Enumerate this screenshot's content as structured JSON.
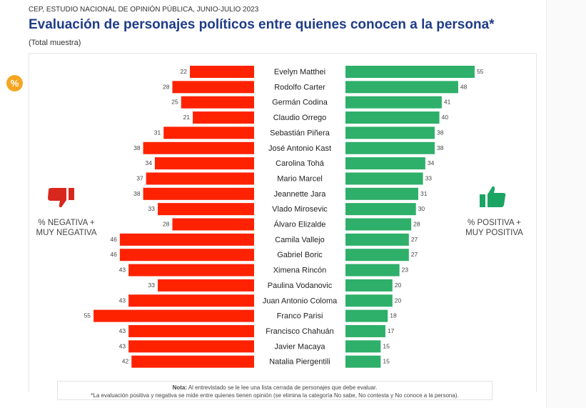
{
  "header": {
    "source": "CEP, ESTUDIO NACIONAL DE OPINIÓN PÚBLICA, JUNIO-JULIO 2023",
    "title": "Evaluación de personajes políticos entre quienes conocen a la persona*",
    "subtitle": "(Total muestra)",
    "badge": "%"
  },
  "labels": {
    "negative": "% NEGATIVA + MUY NEGATIVA",
    "positive": "% POSITIVA + MUY POSITIVA"
  },
  "colors": {
    "negative": "#fe2200",
    "positive": "#2eaf6a",
    "thumb_down": "#d8281e",
    "thumb_up": "#1aa563"
  },
  "note": {
    "bold": "Nota:",
    "line1": " Al entrevistado se le lee una lista cerrada de personajes que debe evaluar.",
    "line2": "*La evaluación positiva y negativa se mide entre quienes tienen opinión (se elimina la categoría No sabe, No contesta y No conoce a la persona)."
  },
  "chart_data": {
    "type": "bar",
    "orientation": "horizontal-diverging",
    "categories": [
      "Evelyn Matthei",
      "Rodolfo Carter",
      "Germán Codina",
      "Claudio Orrego",
      "Sebastián Piñera",
      "José Antonio Kast",
      "Carolina Tohá",
      "Mario Marcel",
      "Jeannette Jara",
      "Vlado Mirosevic",
      "Álvaro Elizalde",
      "Camila Vallejo",
      "Gabriel Boric",
      "Ximena Rincón",
      "Paulina Vodanovic",
      "Juan Antonio Coloma",
      "Franco Parisi",
      "Francisco Chahuán",
      "Javier Macaya",
      "Natalia Piergentili"
    ],
    "series": [
      {
        "name": "% NEGATIVA + MUY NEGATIVA",
        "values": [
          22,
          28,
          25,
          21,
          31,
          38,
          34,
          37,
          38,
          33,
          28,
          46,
          46,
          43,
          33,
          43,
          55,
          43,
          43,
          42
        ]
      },
      {
        "name": "% POSITIVA + MUY POSITIVA",
        "values": [
          55,
          48,
          41,
          40,
          38,
          38,
          34,
          33,
          31,
          30,
          28,
          27,
          27,
          23,
          20,
          20,
          18,
          17,
          15,
          15
        ]
      }
    ]
  }
}
